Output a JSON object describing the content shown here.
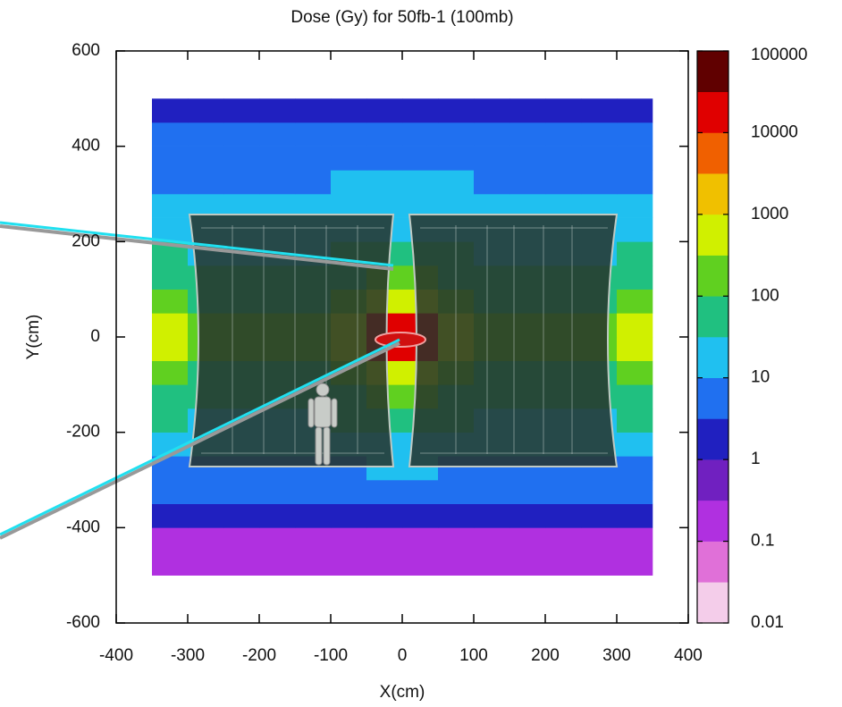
{
  "chart_data": {
    "type": "heatmap",
    "title": "Dose (Gy) for 50fb-1 (100mb)",
    "xlabel": "X(cm)",
    "ylabel": "Y(cm)",
    "xlim": [
      -400,
      400
    ],
    "xticks": [
      -400,
      -300,
      -200,
      -100,
      0,
      100,
      200,
      300,
      400
    ],
    "ylim": [
      -600,
      600
    ],
    "yticks": [
      -600,
      -400,
      -200,
      0,
      200,
      400,
      600
    ],
    "x_edges": [
      -350,
      -300,
      -250,
      -200,
      -150,
      -100,
      -50,
      0,
      50,
      100,
      150,
      200,
      250,
      300,
      350
    ],
    "y_edges": [
      -500,
      -450,
      -400,
      -350,
      -300,
      -250,
      -200,
      -150,
      -100,
      -50,
      0,
      50,
      100,
      150,
      200,
      250,
      300,
      350,
      400,
      450,
      500
    ],
    "z": [
      [
        0.2,
        0.2,
        0.2,
        0.2,
        0.2,
        0.2,
        0.2,
        0.2,
        0.2,
        0.2,
        0.2,
        0.2,
        0.2,
        0.2
      ],
      [
        0.3,
        0.3,
        0.3,
        0.3,
        0.3,
        0.3,
        0.3,
        0.3,
        0.3,
        0.3,
        0.3,
        0.3,
        0.3,
        0.3
      ],
      [
        2,
        2,
        2,
        2,
        2,
        2,
        2,
        2,
        2,
        2,
        2,
        2,
        2,
        2
      ],
      [
        4,
        4,
        4,
        4,
        4,
        4,
        5,
        5,
        4,
        4,
        4,
        4,
        4,
        4
      ],
      [
        8,
        8,
        8,
        8,
        8,
        9,
        11,
        11,
        9,
        8,
        8,
        8,
        8,
        8
      ],
      [
        22,
        20,
        20,
        20,
        20,
        24,
        30,
        30,
        24,
        20,
        20,
        20,
        20,
        22
      ],
      [
        35,
        30,
        30,
        30,
        30,
        40,
        60,
        60,
        40,
        30,
        30,
        30,
        30,
        35
      ],
      [
        70,
        50,
        45,
        45,
        45,
        60,
        150,
        150,
        60,
        45,
        45,
        45,
        50,
        70
      ],
      [
        150,
        80,
        60,
        60,
        60,
        100,
        700,
        700,
        100,
        60,
        60,
        60,
        80,
        150
      ],
      [
        350,
        150,
        100,
        100,
        120,
        600,
        20000,
        20000,
        600,
        120,
        100,
        100,
        150,
        350
      ],
      [
        350,
        150,
        100,
        100,
        120,
        600,
        20000,
        20000,
        600,
        120,
        100,
        100,
        150,
        350
      ],
      [
        150,
        80,
        60,
        60,
        60,
        100,
        700,
        700,
        100,
        60,
        60,
        60,
        80,
        150
      ],
      [
        70,
        50,
        45,
        45,
        45,
        60,
        150,
        150,
        60,
        45,
        45,
        45,
        50,
        70
      ],
      [
        35,
        30,
        30,
        30,
        30,
        40,
        60,
        60,
        40,
        30,
        30,
        30,
        30,
        35
      ],
      [
        22,
        20,
        20,
        20,
        20,
        24,
        30,
        30,
        24,
        20,
        20,
        20,
        20,
        22
      ],
      [
        14,
        14,
        14,
        14,
        14,
        16,
        18,
        18,
        16,
        14,
        14,
        14,
        14,
        14
      ],
      [
        9,
        9,
        9,
        9,
        9,
        10,
        10,
        10,
        10,
        9,
        9,
        9,
        9,
        9
      ],
      [
        6,
        6,
        6,
        6,
        6,
        6,
        7,
        7,
        6,
        6,
        6,
        6,
        6,
        6
      ],
      [
        4,
        4,
        4,
        4,
        4,
        4,
        4,
        4,
        4,
        4,
        4,
        4,
        4,
        4
      ],
      [
        3,
        3,
        3,
        3,
        3,
        3,
        3,
        3,
        3,
        3,
        3,
        3,
        3,
        3
      ]
    ],
    "color_scale": "log",
    "clim": [
      0.01,
      100000
    ],
    "cticks": [
      0.01,
      0.1,
      1,
      10,
      100,
      1000,
      10000,
      100000
    ],
    "colors": [
      "#f4cdea",
      "#e070d8",
      "#b030e0",
      "#7020c0",
      "#2020c0",
      "#2070f0",
      "#20c0f0",
      "#20c080",
      "#60d020",
      "#d0f000",
      "#f0c000",
      "#f06000",
      "#e00000",
      "#600000"
    ]
  }
}
